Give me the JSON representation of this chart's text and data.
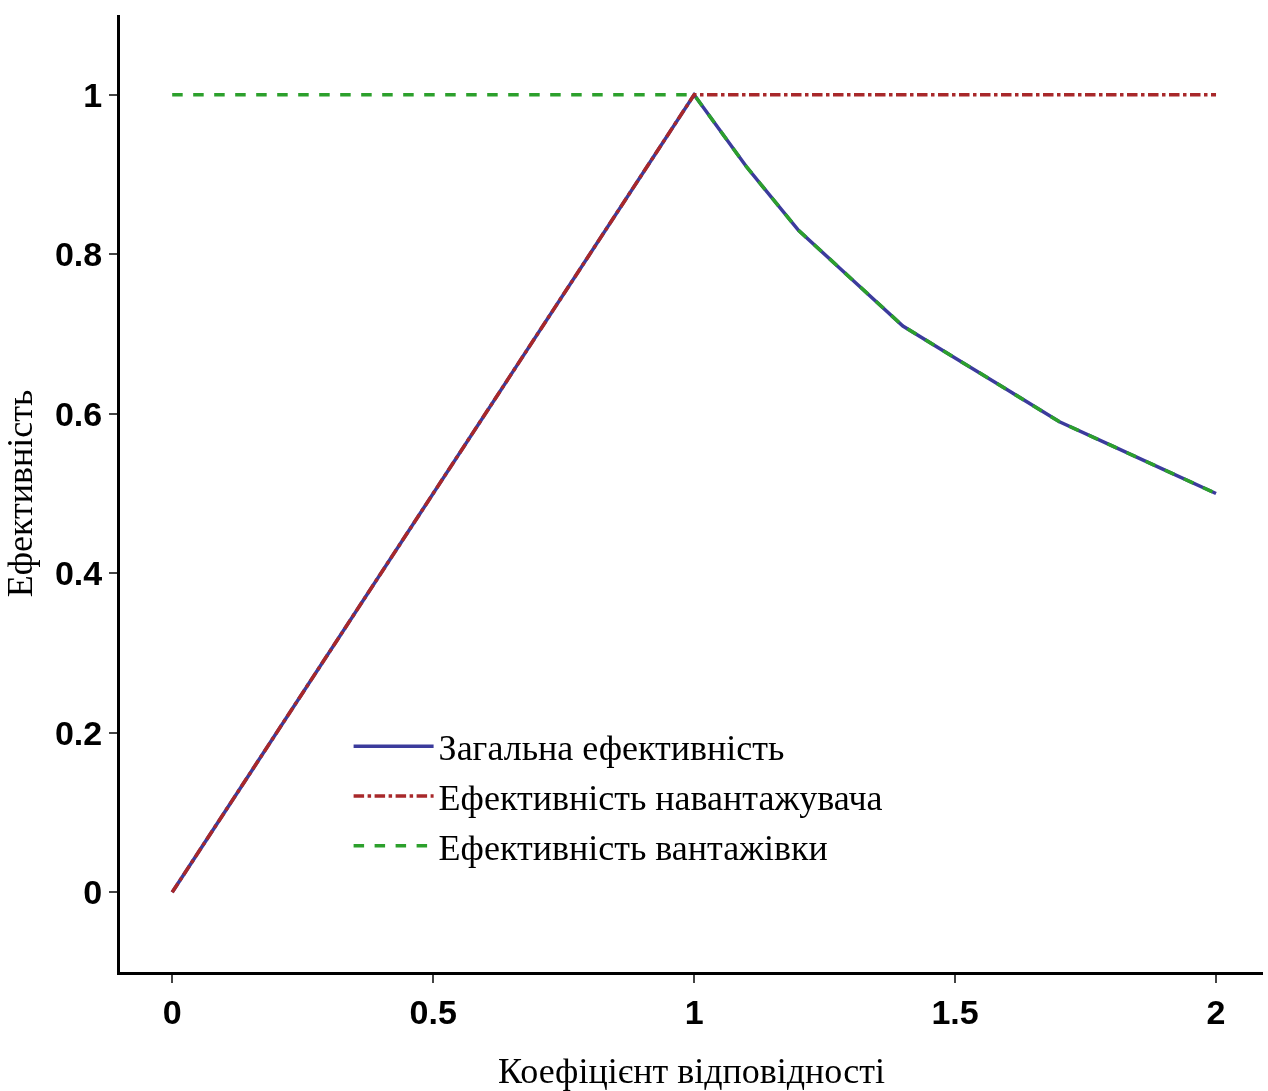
{
  "chart_data": {
    "type": "line",
    "xlabel": "Коефіцієнт відповідності",
    "ylabel": "Ефективність",
    "xlim": [
      -0.1,
      2.09
    ],
    "ylim": [
      -0.1,
      1.1
    ],
    "xticks": [
      0,
      0.5,
      1,
      1.5,
      2
    ],
    "yticks": [
      0,
      0.2,
      0.4,
      0.6,
      0.8,
      1
    ],
    "legend": "bottom",
    "marker": "none",
    "series": [
      {
        "name": "Загальна ефективність",
        "color": "#3b3b9c",
        "line_style": "solid",
        "x": [
          0,
          1,
          1.1,
          1.2,
          1.3,
          1.4,
          1.5,
          1.6,
          1.7,
          1.8,
          1.9,
          2
        ],
        "values": [
          0,
          1,
          0.91,
          0.83,
          0.77,
          0.71,
          0.67,
          0.63,
          0.59,
          0.56,
          0.53,
          0.5
        ]
      },
      {
        "name": "Ефективність навантажувача",
        "color": "#a8282a",
        "line_style": "dashdot",
        "x": [
          0,
          1,
          2
        ],
        "values": [
          0,
          1,
          1
        ]
      },
      {
        "name": "Ефективність вантажівки",
        "color": "#2ca02c",
        "line_style": "dashed",
        "x": [
          0,
          1,
          1.1,
          1.2,
          1.3,
          1.4,
          1.5,
          1.6,
          1.7,
          1.8,
          1.9,
          2
        ],
        "values": [
          1,
          1,
          0.91,
          0.83,
          0.77,
          0.71,
          0.67,
          0.63,
          0.59,
          0.56,
          0.53,
          0.5
        ]
      }
    ]
  }
}
